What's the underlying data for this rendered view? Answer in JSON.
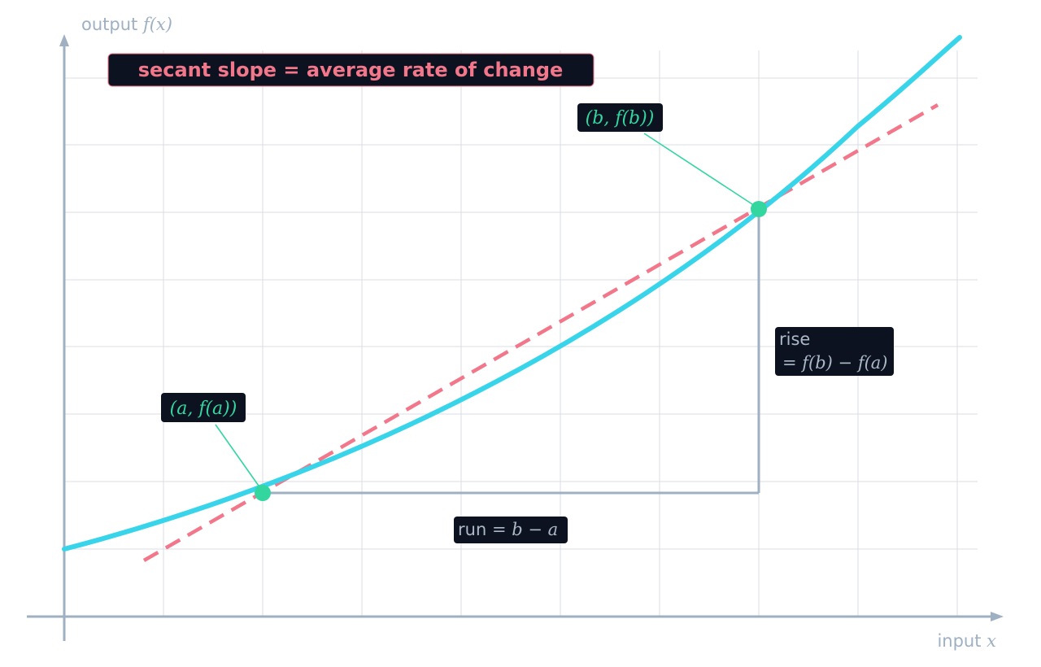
{
  "axes": {
    "x_label_text": "input ",
    "x_label_var": "x",
    "y_label_text": "output ",
    "y_label_var": "f(x)"
  },
  "title": "secant slope  =  average rate of change",
  "labels": {
    "point_a": "(a,  f(a))",
    "point_b": "(b,  f(b))",
    "rise_word": "rise",
    "rise_formula": "= f(b) − f(a)",
    "run_word": "run ",
    "run_formula": "= b − a"
  },
  "colors": {
    "curve": "#38d4ea",
    "secant": "#f2778a",
    "point": "#33d69f",
    "axis": "#9fb0c3",
    "label_bg": "#0d1220",
    "title_text": "#f2778a",
    "point_label_text": "#33d69f",
    "note_text": "#aab8c8",
    "grid": "#d8dde3"
  }
}
